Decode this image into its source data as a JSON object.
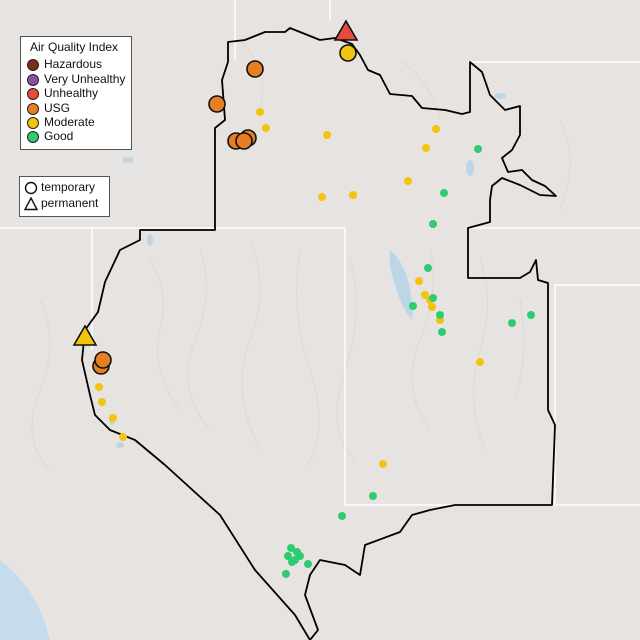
{
  "legend": {
    "title": "Air Quality Index",
    "categories": [
      {
        "label": "Hazardous",
        "color": "#7e2b20"
      },
      {
        "label": "Very Unhealthy",
        "color": "#8e4ea3"
      },
      {
        "label": "Unhealthy",
        "color": "#e64b3b"
      },
      {
        "label": "USG",
        "color": "#e67e22"
      },
      {
        "label": "Moderate",
        "color": "#f1c40f"
      },
      {
        "label": "Good",
        "color": "#2ecc71"
      }
    ]
  },
  "monitor_legend": {
    "items": [
      {
        "label": "temporary",
        "icon": "circle-icon"
      },
      {
        "label": "permanent",
        "icon": "triangle-icon"
      }
    ]
  },
  "map_colors": {
    "land": "#e6e3e1",
    "water": "#bcd6e8",
    "ocean": "#c5dced",
    "boundary": "#000000",
    "state_lines": "#ffffff"
  }
}
